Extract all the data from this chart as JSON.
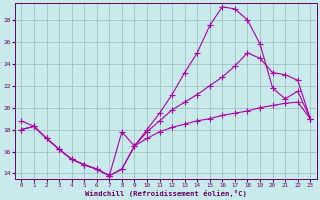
{
  "xlabel": "Windchill (Refroidissement éolien,°C)",
  "background_color": "#c8eaea",
  "line_color": "#aa00aa",
  "grid_color": "#99bbbb",
  "ylim": [
    13.5,
    29.5
  ],
  "xlim": [
    -0.5,
    23.5
  ],
  "yticks": [
    14,
    16,
    18,
    20,
    22,
    24,
    26,
    28
  ],
  "xticks": [
    0,
    1,
    2,
    3,
    4,
    5,
    6,
    7,
    8,
    9,
    10,
    11,
    12,
    13,
    14,
    15,
    16,
    17,
    18,
    19,
    20,
    21,
    22,
    23
  ],
  "series1_x": [
    0,
    1,
    2,
    3,
    4,
    5,
    6,
    7,
    8,
    9,
    10,
    11,
    12,
    13,
    14,
    15,
    16,
    17,
    18,
    19,
    20,
    21,
    22,
    23
  ],
  "series1_y": [
    18.0,
    18.3,
    17.2,
    16.2,
    15.3,
    14.8,
    14.4,
    13.8,
    14.4,
    16.5,
    18.0,
    19.5,
    21.2,
    23.2,
    25.0,
    27.5,
    29.2,
    29.0,
    28.0,
    25.8,
    21.8,
    20.8,
    21.5,
    19.0
  ],
  "series2_x": [
    0,
    1,
    2,
    3,
    4,
    5,
    6,
    7,
    8,
    9,
    10,
    11,
    12,
    13,
    14,
    15,
    16,
    17,
    18,
    19,
    20,
    21,
    22,
    23
  ],
  "series2_y": [
    18.8,
    18.3,
    17.2,
    16.2,
    15.3,
    14.8,
    14.4,
    13.8,
    14.4,
    16.5,
    17.8,
    18.8,
    19.8,
    20.5,
    21.2,
    22.0,
    22.8,
    23.8,
    25.0,
    24.5,
    23.2,
    23.0,
    22.5,
    19.0
  ],
  "series3_x": [
    0,
    1,
    2,
    3,
    4,
    5,
    6,
    7,
    8,
    9,
    10,
    11,
    12,
    13,
    14,
    15,
    16,
    17,
    18,
    19,
    20,
    21,
    22,
    23
  ],
  "series3_y": [
    18.0,
    18.3,
    17.2,
    16.2,
    15.3,
    14.8,
    14.4,
    13.8,
    17.8,
    16.5,
    17.2,
    17.8,
    18.2,
    18.5,
    18.8,
    19.0,
    19.3,
    19.5,
    19.7,
    20.0,
    20.2,
    20.4,
    20.5,
    19.0
  ]
}
